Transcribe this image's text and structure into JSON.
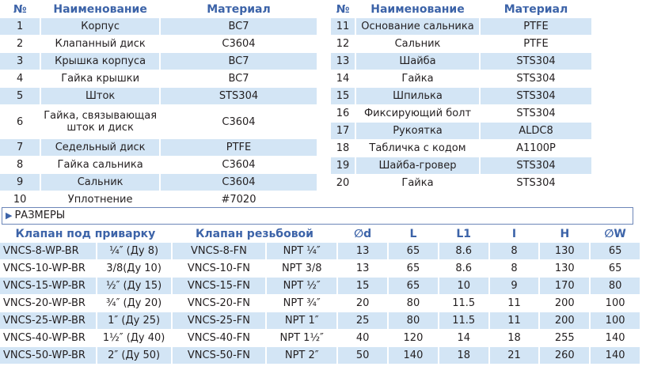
{
  "parts_headers": {
    "no": "№",
    "name": "Наименование",
    "material": "Материал"
  },
  "parts_left": [
    {
      "no": "1",
      "name": "Корпус",
      "material": "BC7"
    },
    {
      "no": "2",
      "name": "Клапанный диск",
      "material": "C3604"
    },
    {
      "no": "3",
      "name": "Крышка корпуса",
      "material": "BC7"
    },
    {
      "no": "4",
      "name": "Гайка крышки",
      "material": "BC7"
    },
    {
      "no": "5",
      "name": "Шток",
      "material": "STS304"
    },
    {
      "no": "6",
      "name": "Гайка, связывающая шток и диск",
      "material": "C3604"
    },
    {
      "no": "7",
      "name": "Седельный диск",
      "material": "PTFE"
    },
    {
      "no": "8",
      "name": "Гайка сальника",
      "material": "C3604"
    },
    {
      "no": "9",
      "name": "Сальник",
      "material": "C3604"
    },
    {
      "no": "10",
      "name": "Уплотнение",
      "material": "#7020"
    }
  ],
  "parts_right": [
    {
      "no": "11",
      "name": "Основание сальника",
      "material": "PTFE"
    },
    {
      "no": "12",
      "name": "Сальник",
      "material": "PTFE"
    },
    {
      "no": "13",
      "name": "Шайба",
      "material": "STS304"
    },
    {
      "no": "14",
      "name": "Гайка",
      "material": "STS304"
    },
    {
      "no": "15",
      "name": "Шпилька",
      "material": "STS304"
    },
    {
      "no": "16",
      "name": "Фиксирующий болт",
      "material": "STS304"
    },
    {
      "no": "17",
      "name": "Рукоятка",
      "material": "ALDC8"
    },
    {
      "no": "18",
      "name": "Табличка с кодом",
      "material": "A1100P"
    },
    {
      "no": "19",
      "name": "Шайба-гровер",
      "material": "STS304"
    },
    {
      "no": "20",
      "name": "Гайка",
      "material": "STS304"
    }
  ],
  "section_title": "РАЗМЕРЫ",
  "dims_headers": {
    "weld": "Клапан под приварку",
    "thread": "Клапан резьбовой",
    "d": "∅d",
    "L": "L",
    "L1": "L1",
    "I": "I",
    "H": "H",
    "W": "∅W"
  },
  "dims_rows": [
    [
      "VNCS-8-WP-BR",
      "¼″ (Ду 8)",
      "VNCS-8-FN",
      "NPT ¼″",
      "13",
      "65",
      "8.6",
      "8",
      "130",
      "65"
    ],
    [
      "VNCS-10-WP-BR",
      "3/8(Ду 10)",
      "VNCS-10-FN",
      "NPT 3/8",
      "13",
      "65",
      "8.6",
      "8",
      "130",
      "65"
    ],
    [
      "VNCS-15-WP-BR",
      "½″ (Ду 15)",
      "VNCS-15-FN",
      "NPT ½″",
      "15",
      "65",
      "10",
      "9",
      "170",
      "80"
    ],
    [
      "VNCS-20-WP-BR",
      "¾″ (Ду 20)",
      "VNCS-20-FN",
      "NPT ¾″",
      "20",
      "80",
      "11.5",
      "11",
      "200",
      "100"
    ],
    [
      "VNCS-25-WP-BR",
      "1″ (Ду 25)",
      "VNCS-25-FN",
      "NPT 1″",
      "25",
      "80",
      "11.5",
      "11",
      "200",
      "100"
    ],
    [
      "VNCS-40-WP-BR",
      "1½″ (Ду 40)",
      "VNCS-40-FN",
      "NPT 1½″",
      "40",
      "120",
      "14",
      "18",
      "255",
      "140"
    ],
    [
      "VNCS-50-WP-BR",
      "2″ (Ду 50)",
      "VNCS-50-FN",
      "NPT 2″",
      "50",
      "140",
      "18",
      "21",
      "260",
      "140"
    ]
  ],
  "colors": {
    "header_text": "#3c63a8",
    "row_shade": "#d3e5f5"
  }
}
